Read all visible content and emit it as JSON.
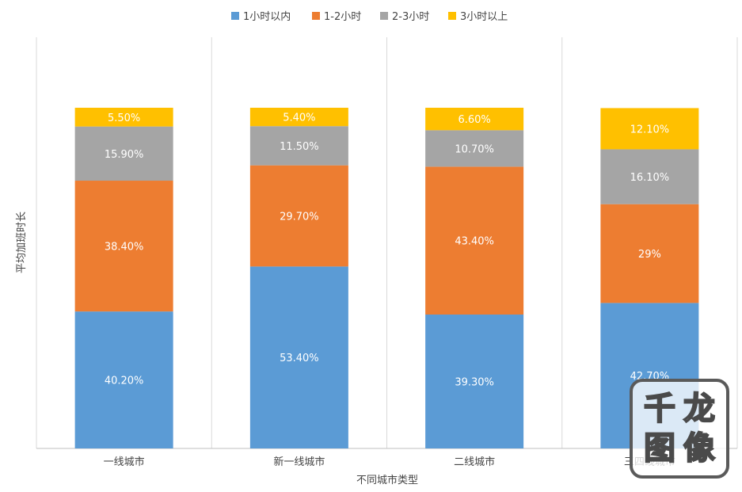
{
  "chart_data": {
    "type": "bar",
    "stacked": true,
    "percent_stacked": true,
    "categories": [
      "一线城市",
      "新一线城市",
      "二线城市",
      "三四线城市"
    ],
    "series": [
      {
        "name": "1小时以内",
        "color": "#5b9bd5",
        "values": [
          40.2,
          53.4,
          39.3,
          42.7
        ],
        "labels": [
          "40.20%",
          "53.40%",
          "39.30%",
          "42.70%"
        ]
      },
      {
        "name": "1-2小时",
        "color": "#ed7d31",
        "values": [
          38.4,
          29.7,
          43.4,
          29
        ],
        "labels": [
          "38.40%",
          "29.70%",
          "43.40%",
          "29%"
        ]
      },
      {
        "name": "2-3小时",
        "color": "#a5a5a5",
        "values": [
          15.9,
          11.5,
          10.7,
          16.1
        ],
        "labels": [
          "15.90%",
          "11.50%",
          "10.70%",
          "16.10%"
        ]
      },
      {
        "name": "3小时以上",
        "color": "#ffc000",
        "values": [
          5.5,
          5.4,
          6.6,
          12.1
        ],
        "labels": [
          "5.50%",
          "5.40%",
          "6.60%",
          "12.10%"
        ]
      }
    ],
    "xlabel": "不同城市类型",
    "ylabel": "平均加班时长",
    "legend_position": "top",
    "grid": "vertical category separators"
  },
  "watermark": {
    "chars": [
      "千",
      "龙",
      "图",
      "像"
    ]
  }
}
